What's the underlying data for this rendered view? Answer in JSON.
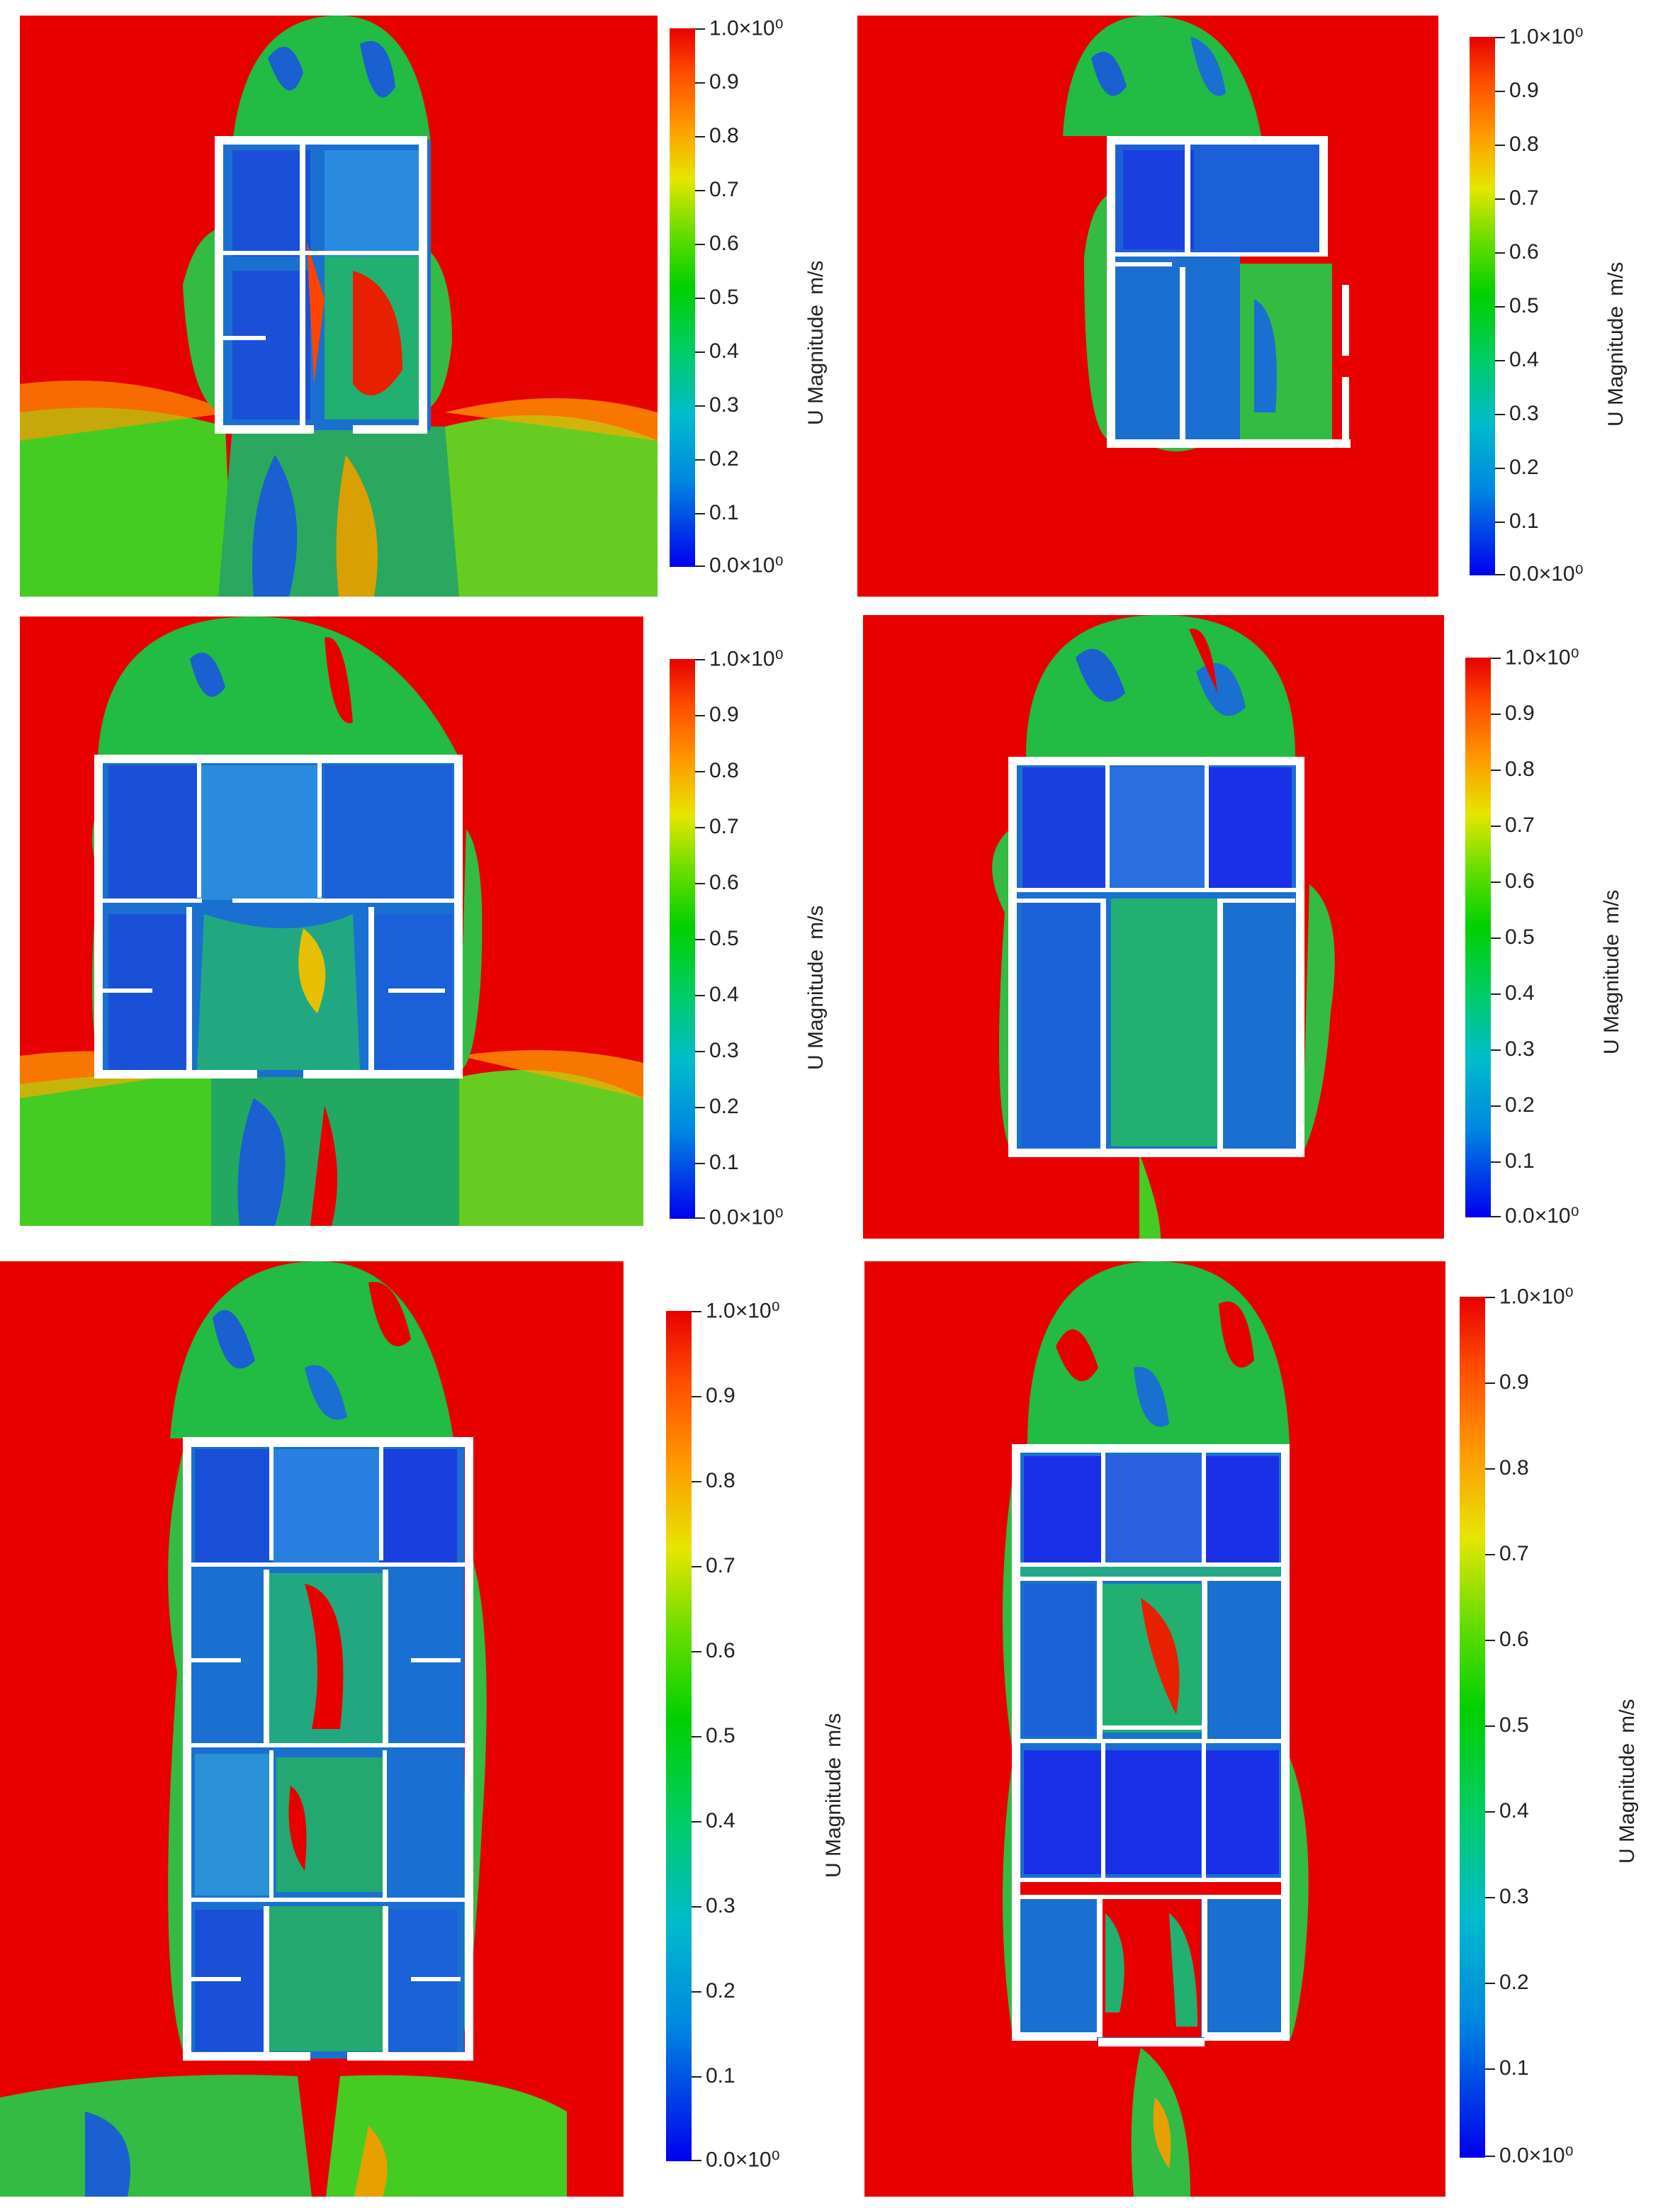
{
  "colorbar": {
    "title": "U Magnitude",
    "unit": "m/s",
    "tick_labels": [
      "1.0×10⁰",
      "0.9",
      "0.8",
      "0.7",
      "0.6",
      "0.5",
      "0.4",
      "0.3",
      "0.2",
      "0.1",
      "0.0×10⁰"
    ],
    "range": [
      0,
      1
    ],
    "colors": [
      "#0000ee",
      "#0088e0",
      "#00bbcc",
      "#00cc66",
      "#00d000",
      "#66dd00",
      "#e6e600",
      "#ff9900",
      "#ff4a00",
      "#e80000"
    ]
  },
  "panels": [
    {
      "id": "top-left",
      "rooms": "2x2",
      "ambient": "#e80000"
    },
    {
      "id": "top-right",
      "rooms": "2x2",
      "ambient": "#e80000"
    },
    {
      "id": "middle-left",
      "rooms": "3x2",
      "ambient": "#e80000"
    },
    {
      "id": "middle-right",
      "rooms": "3x2",
      "ambient": "#e80000"
    },
    {
      "id": "bottom-left",
      "rooms": "3x4",
      "ambient": "#e80000"
    },
    {
      "id": "bottom-right",
      "rooms": "3x4",
      "ambient": "#e80000"
    }
  ]
}
